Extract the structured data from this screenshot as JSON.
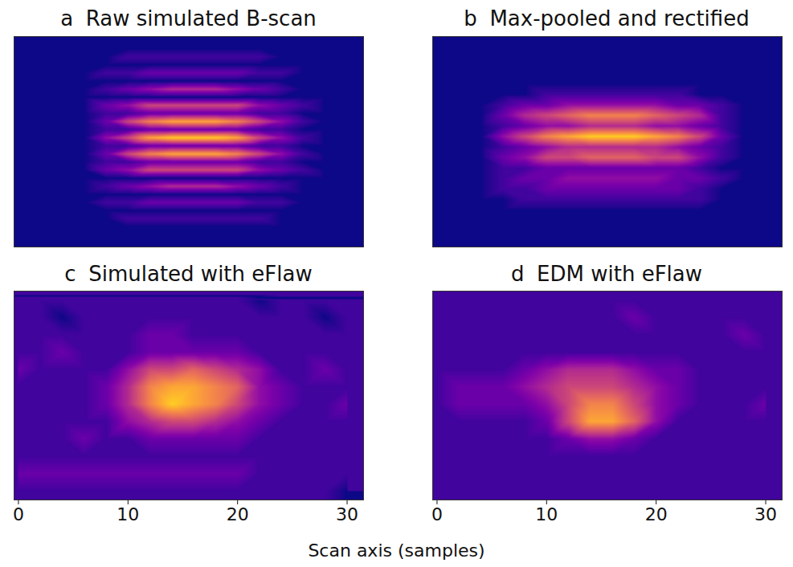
{
  "chart_data": [
    {
      "type": "heatmap",
      "letter": "a",
      "title": "Raw simulated B-scan",
      "color": "plasma",
      "zlim": [
        0,
        10
      ],
      "tick_labels": false,
      "xlim": [
        -0.4,
        31.5
      ],
      "x": [
        0,
        2,
        4,
        6,
        8,
        10,
        12,
        14,
        16,
        18,
        20,
        22,
        24,
        26,
        28,
        30
      ],
      "cells": [
        [
          0,
          0,
          0,
          0,
          0,
          0,
          0,
          0,
          0,
          0,
          0,
          0,
          0,
          0,
          0,
          0
        ],
        [
          0,
          0,
          0,
          0,
          0,
          0,
          0,
          0,
          0,
          0,
          0,
          0,
          0,
          0,
          0,
          0
        ],
        [
          0,
          0,
          0,
          0,
          0,
          1,
          1,
          1,
          1,
          1,
          1,
          1,
          0,
          0,
          0,
          0
        ],
        [
          0,
          0,
          0,
          0,
          0,
          0,
          0,
          0,
          0,
          0,
          0,
          0,
          0,
          0,
          0,
          0
        ],
        [
          0,
          0,
          0,
          0,
          1,
          1,
          2,
          2,
          2,
          2,
          2,
          1,
          1,
          0,
          0,
          0
        ],
        [
          0,
          0,
          0,
          0,
          0,
          0,
          0,
          0,
          0,
          0,
          0,
          0,
          0,
          0,
          0,
          0
        ],
        [
          0,
          0,
          0,
          0,
          1,
          2,
          3,
          4,
          4,
          4,
          3,
          2,
          1,
          0,
          0,
          0
        ],
        [
          0,
          0,
          0,
          0,
          0,
          0,
          0,
          0,
          0,
          0,
          0,
          0,
          0,
          0,
          0,
          0
        ],
        [
          0,
          0,
          0,
          0,
          2,
          3,
          5,
          5,
          5,
          5,
          5,
          3,
          2,
          1,
          0,
          0
        ],
        [
          0,
          0,
          0,
          0,
          1,
          1,
          2,
          2,
          2,
          2,
          2,
          1,
          1,
          0,
          0,
          0
        ],
        [
          0,
          0,
          0,
          0,
          2,
          5,
          7,
          8,
          8,
          8,
          7,
          5,
          3,
          1,
          0,
          0
        ],
        [
          0,
          0,
          0,
          0,
          1,
          1,
          2,
          2,
          2,
          2,
          2,
          1,
          1,
          0,
          0,
          0
        ],
        [
          0,
          0,
          0,
          0,
          3,
          5,
          8,
          9,
          9,
          9,
          8,
          5,
          3,
          1,
          0,
          0
        ],
        [
          0,
          0,
          0,
          0,
          1,
          1,
          2,
          2,
          2,
          2,
          2,
          1,
          1,
          0,
          0,
          0
        ],
        [
          0,
          0,
          0,
          0,
          2,
          5,
          7,
          8,
          8,
          8,
          7,
          5,
          3,
          1,
          0,
          0
        ],
        [
          0,
          0,
          0,
          0,
          1,
          1,
          2,
          2,
          2,
          2,
          2,
          1,
          1,
          0,
          0,
          0
        ],
        [
          0,
          0,
          0,
          0,
          2,
          3,
          5,
          5,
          5,
          5,
          5,
          3,
          2,
          1,
          0,
          0
        ],
        [
          0,
          0,
          0,
          0,
          0,
          0,
          0,
          0,
          0,
          0,
          0,
          0,
          0,
          0,
          0,
          0
        ],
        [
          0,
          0,
          0,
          0,
          1,
          2,
          3,
          4,
          4,
          4,
          3,
          2,
          1,
          0,
          0,
          0
        ],
        [
          0,
          0,
          0,
          0,
          0,
          0,
          0,
          0,
          0,
          0,
          0,
          0,
          0,
          0,
          0,
          0
        ],
        [
          0,
          0,
          0,
          0,
          1,
          1,
          2,
          2,
          2,
          2,
          2,
          1,
          1,
          0,
          0,
          0
        ],
        [
          0,
          0,
          0,
          0,
          0,
          0,
          0,
          0,
          0,
          0,
          0,
          0,
          0,
          0,
          0,
          0
        ],
        [
          0,
          0,
          0,
          0,
          0,
          1,
          1,
          1,
          1,
          1,
          1,
          1,
          0,
          0,
          0,
          0
        ],
        [
          0,
          0,
          0,
          0,
          0,
          0,
          0,
          0,
          0,
          0,
          0,
          0,
          0,
          0,
          0,
          0
        ],
        [
          0,
          0,
          0,
          0,
          0,
          0,
          0,
          0,
          0,
          0,
          0,
          0,
          0,
          0,
          0,
          0
        ],
        [
          0,
          0,
          0,
          0,
          0,
          0,
          0,
          0,
          0,
          0,
          0,
          0,
          0,
          0,
          0,
          0
        ]
      ]
    },
    {
      "type": "heatmap",
      "letter": "b",
      "title": "Max-pooled and rectified",
      "color": "plasma",
      "zlim": [
        0,
        10
      ],
      "tick_labels": false,
      "xlim": [
        -0.4,
        31.5
      ],
      "x": [
        0,
        2,
        4,
        6,
        8,
        10,
        12,
        14,
        16,
        18,
        20,
        22,
        24,
        26,
        28,
        30
      ],
      "cells": [
        [
          0,
          0,
          0,
          0,
          0,
          0,
          0,
          0,
          0,
          0,
          0,
          0,
          0,
          0,
          0,
          0
        ],
        [
          0,
          0,
          0,
          0,
          0,
          0,
          0,
          0,
          0,
          0,
          0,
          0,
          0,
          0,
          0,
          0
        ],
        [
          0,
          0,
          0,
          0,
          0,
          0,
          0,
          0,
          0,
          0,
          0,
          0,
          0,
          0,
          0,
          0
        ],
        [
          0,
          0,
          0,
          0,
          0,
          0,
          0,
          0,
          0,
          0,
          0,
          0,
          0,
          0,
          0,
          0
        ],
        [
          0,
          0,
          0,
          0,
          0,
          0,
          0,
          0,
          0,
          0,
          0,
          0,
          0,
          0,
          0,
          0
        ],
        [
          0,
          0,
          0,
          0,
          0,
          1,
          1,
          1,
          1,
          1,
          1,
          1,
          0,
          0,
          0,
          0
        ],
        [
          0,
          0,
          0,
          1,
          2,
          2,
          3,
          3,
          3,
          3,
          3,
          2,
          2,
          1,
          0,
          0
        ],
        [
          0,
          0,
          0,
          2,
          4,
          5,
          6,
          7,
          7,
          7,
          6,
          5,
          4,
          1,
          0,
          0
        ],
        [
          0,
          0,
          0,
          1,
          2,
          3,
          3,
          4,
          4,
          4,
          3,
          3,
          2,
          1,
          0,
          0
        ],
        [
          0,
          0,
          0,
          3,
          5,
          7,
          8,
          9,
          9,
          9,
          8,
          7,
          5,
          2,
          0,
          0
        ],
        [
          0,
          0,
          0,
          1,
          2,
          3,
          4,
          4,
          4,
          4,
          4,
          3,
          2,
          1,
          0,
          0
        ],
        [
          0,
          0,
          0,
          2,
          3,
          5,
          5,
          6,
          6,
          6,
          5,
          5,
          3,
          1,
          0,
          0
        ],
        [
          0,
          0,
          0,
          1,
          1,
          2,
          2,
          2,
          2,
          2,
          2,
          2,
          1,
          0,
          0,
          0
        ],
        [
          0,
          0,
          0,
          1,
          2,
          2,
          3,
          3,
          3,
          3,
          3,
          2,
          2,
          1,
          0,
          0
        ],
        [
          0,
          0,
          0,
          1,
          1,
          2,
          2,
          2,
          2,
          2,
          2,
          2,
          1,
          0,
          0,
          0
        ],
        [
          0,
          0,
          0,
          0,
          1,
          1,
          1,
          1,
          1,
          1,
          1,
          1,
          1,
          0,
          0,
          0
        ],
        [
          0,
          0,
          0,
          0,
          0,
          0,
          0,
          0,
          0,
          0,
          0,
          0,
          0,
          0,
          0,
          0
        ],
        [
          0,
          0,
          0,
          0,
          0,
          0,
          0,
          0,
          0,
          0,
          0,
          0,
          0,
          0,
          0,
          0
        ],
        [
          0,
          0,
          0,
          0,
          0,
          0,
          0,
          0,
          0,
          0,
          0,
          0,
          0,
          0,
          0,
          0
        ],
        [
          0,
          0,
          0,
          0,
          0,
          0,
          0,
          0,
          0,
          0,
          0,
          0,
          0,
          0,
          0,
          0
        ]
      ]
    },
    {
      "type": "heatmap",
      "letter": "c",
      "title": "Simulated with eFlaw",
      "color": "plasma",
      "zlim": [
        0,
        10
      ],
      "tick_labels": "x",
      "xlim": [
        -0.4,
        31.5
      ],
      "xticks": [
        0,
        10,
        20,
        30
      ],
      "x": [
        0,
        2,
        4,
        6,
        8,
        10,
        12,
        14,
        16,
        18,
        20,
        22,
        24,
        26,
        28,
        30
      ],
      "cells": [
        [
          1,
          1,
          1,
          1,
          1,
          1,
          1,
          1,
          1,
          1,
          1,
          0,
          1,
          1,
          1,
          1
        ],
        [
          1,
          1,
          0,
          1,
          1,
          1,
          1,
          1,
          1,
          1,
          1,
          1,
          1,
          1,
          0,
          1
        ],
        [
          1,
          1,
          1,
          1,
          1,
          1,
          2,
          2,
          1,
          1,
          1,
          1,
          1,
          1,
          1,
          1
        ],
        [
          1,
          1,
          2,
          1,
          1,
          1,
          2,
          2,
          2,
          2,
          2,
          1,
          1,
          1,
          1,
          1
        ],
        [
          2,
          1,
          1,
          1,
          1,
          3,
          5,
          5,
          6,
          5,
          4,
          3,
          1,
          1,
          2,
          1
        ],
        [
          1,
          1,
          1,
          1,
          2,
          4,
          7,
          8,
          8,
          7,
          6,
          3,
          2,
          1,
          1,
          1
        ],
        [
          1,
          1,
          1,
          1,
          2,
          4,
          7,
          9,
          8,
          7,
          5,
          3,
          2,
          1,
          1,
          2
        ],
        [
          1,
          1,
          1,
          1,
          1,
          3,
          4,
          5,
          5,
          4,
          3,
          2,
          1,
          1,
          1,
          1
        ],
        [
          1,
          1,
          1,
          2,
          1,
          1,
          2,
          2,
          2,
          2,
          2,
          1,
          1,
          1,
          1,
          1
        ],
        [
          1,
          1,
          1,
          1,
          1,
          1,
          1,
          1,
          1,
          1,
          1,
          1,
          1,
          1,
          1,
          1
        ],
        [
          2,
          2,
          2,
          2,
          2,
          2,
          2,
          2,
          2,
          2,
          2,
          1,
          1,
          1,
          1,
          1
        ],
        [
          1,
          1,
          1,
          1,
          1,
          1,
          1,
          1,
          1,
          1,
          1,
          1,
          1,
          1,
          1,
          0
        ]
      ]
    },
    {
      "type": "heatmap",
      "letter": "d",
      "title": "EDM with eFlaw",
      "color": "plasma",
      "zlim": [
        0,
        10
      ],
      "tick_labels": "x",
      "xlim": [
        -0.4,
        31.5
      ],
      "xticks": [
        0,
        10,
        20,
        30
      ],
      "x": [
        0,
        2,
        4,
        6,
        8,
        10,
        12,
        14,
        16,
        18,
        20,
        22,
        24,
        26,
        28,
        30
      ],
      "cells": [
        [
          1,
          1,
          1,
          1,
          1,
          1,
          1,
          1,
          1,
          1,
          1,
          1,
          1,
          1,
          1,
          1
        ],
        [
          1,
          1,
          1,
          1,
          1,
          1,
          1,
          1,
          1,
          2,
          1,
          1,
          1,
          1,
          1,
          1
        ],
        [
          1,
          1,
          1,
          1,
          1,
          1,
          1,
          1,
          1,
          1,
          1,
          1,
          1,
          1,
          2,
          1
        ],
        [
          1,
          1,
          1,
          1,
          1,
          1,
          1,
          1,
          1,
          1,
          1,
          1,
          1,
          1,
          1,
          1
        ],
        [
          1,
          1,
          1,
          1,
          2,
          3,
          4,
          4,
          4,
          3,
          2,
          2,
          1,
          1,
          1,
          1
        ],
        [
          1,
          2,
          2,
          2,
          3,
          4,
          5,
          5,
          5,
          4,
          3,
          2,
          1,
          1,
          1,
          1
        ],
        [
          1,
          2,
          2,
          2,
          2,
          3,
          5,
          7,
          7,
          5,
          3,
          2,
          1,
          1,
          1,
          2
        ],
        [
          1,
          1,
          1,
          1,
          1,
          2,
          5,
          8,
          8,
          6,
          3,
          1,
          1,
          1,
          1,
          1
        ],
        [
          1,
          1,
          1,
          1,
          1,
          1,
          2,
          3,
          3,
          2,
          1,
          1,
          1,
          1,
          1,
          1
        ],
        [
          1,
          1,
          1,
          1,
          1,
          1,
          1,
          1,
          1,
          1,
          1,
          1,
          1,
          1,
          1,
          1
        ],
        [
          1,
          1,
          1,
          1,
          1,
          1,
          1,
          1,
          1,
          1,
          1,
          1,
          1,
          1,
          1,
          1
        ],
        [
          1,
          1,
          1,
          1,
          1,
          1,
          1,
          1,
          1,
          1,
          1,
          1,
          1,
          1,
          1,
          1
        ]
      ]
    }
  ],
  "xlabel": "Scan axis (samples)"
}
